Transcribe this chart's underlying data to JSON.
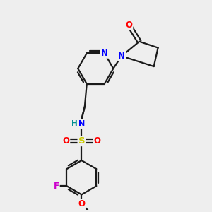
{
  "background_color": "#eeeeee",
  "bond_color": "#1a1a1a",
  "atom_colors": {
    "N": "#0000ff",
    "O": "#ff0000",
    "F": "#cc00cc",
    "S": "#cccc00",
    "NH": "#009090",
    "C": "#1a1a1a"
  },
  "fig_width": 3.0,
  "fig_height": 3.0,
  "dpi": 100
}
